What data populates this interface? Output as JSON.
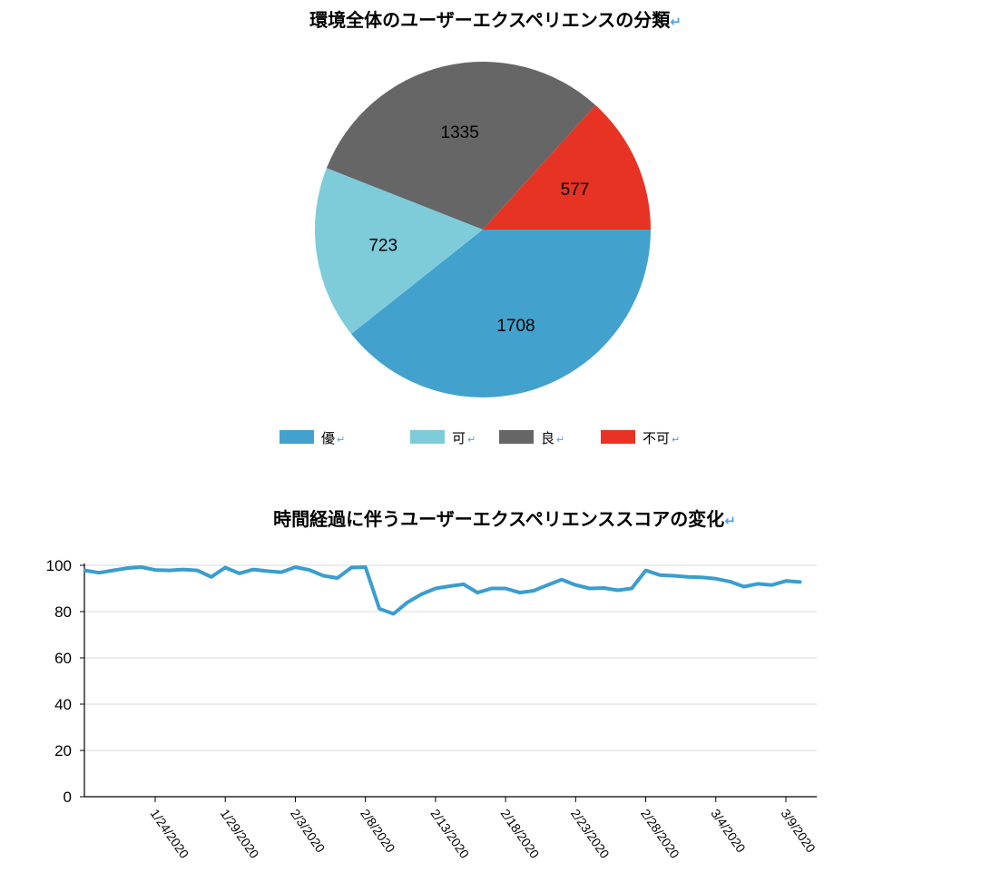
{
  "pie_title": "環境全体のユーザーエクスペリエンスの分類",
  "line_title": "時間経過に伴うユーザーエクスペリエンススコアの変化",
  "return_mark": "↵",
  "chart_data": [
    {
      "type": "pie",
      "title": "環境全体のユーザーエクスペリエンスの分類",
      "slices": [
        {
          "label": "優",
          "value": 1708,
          "color": "#42a2cd"
        },
        {
          "label": "可",
          "value": 723,
          "color": "#7ecbd9"
        },
        {
          "label": "良",
          "value": 1335,
          "color": "#666666"
        },
        {
          "label": "不可",
          "value": 577,
          "color": "#e63323"
        }
      ],
      "legend_position": "bottom"
    },
    {
      "type": "line",
      "title": "時間経過に伴うユーザーエクスペリエンススコアの変化",
      "xlabel": "",
      "ylabel": "",
      "ylim": [
        0,
        100
      ],
      "yticks": [
        0,
        20,
        40,
        60,
        80,
        100
      ],
      "xtick_labels": [
        "1/24/2020",
        "1/29/2020",
        "2/3/2020",
        "2/8/2020",
        "2/13/2020",
        "2/18/2020",
        "2/23/2020",
        "2/28/2020",
        "3/4/2020",
        "3/9/2020"
      ],
      "grid": true,
      "color": "#3a9dcf",
      "series": [
        {
          "x": [
            "1/19/2020",
            "1/20/2020",
            "1/21/2020",
            "1/22/2020",
            "1/23/2020",
            "1/24/2020",
            "1/25/2020",
            "1/26/2020",
            "1/27/2020",
            "1/28/2020",
            "1/29/2020",
            "1/30/2020",
            "1/31/2020",
            "2/1/2020",
            "2/2/2020",
            "2/3/2020",
            "2/4/2020",
            "2/5/2020",
            "2/6/2020",
            "2/7/2020",
            "2/8/2020",
            "2/9/2020",
            "2/10/2020",
            "2/11/2020",
            "2/12/2020",
            "2/13/2020",
            "2/14/2020",
            "2/15/2020",
            "2/16/2020",
            "2/17/2020",
            "2/18/2020",
            "2/19/2020",
            "2/20/2020",
            "2/21/2020",
            "2/22/2020",
            "2/23/2020",
            "2/24/2020",
            "2/25/2020",
            "2/26/2020",
            "2/27/2020",
            "2/28/2020",
            "2/29/2020",
            "3/1/2020",
            "3/2/2020",
            "3/3/2020",
            "3/4/2020",
            "3/5/2020",
            "3/6/2020",
            "3/7/2020",
            "3/8/2020",
            "3/9/2020",
            "3/10/2020"
          ],
          "values": [
            97.8,
            96.8,
            97.8,
            98.8,
            99.2,
            98,
            97.8,
            98.2,
            97.8,
            95,
            99,
            96.5,
            98.2,
            97.5,
            97,
            99.2,
            98,
            95.5,
            94.5,
            99,
            99.2,
            81.2,
            79,
            84,
            87.5,
            90,
            91,
            91.8,
            88.2,
            90,
            90,
            88.2,
            89,
            91.5,
            93.8,
            91.5,
            90,
            90.2,
            89.2,
            90,
            97.8,
            95.8,
            95.5,
            95,
            94.8,
            94.2,
            93,
            90.8,
            92,
            91.5,
            93.2,
            92.8
          ]
        }
      ]
    }
  ]
}
